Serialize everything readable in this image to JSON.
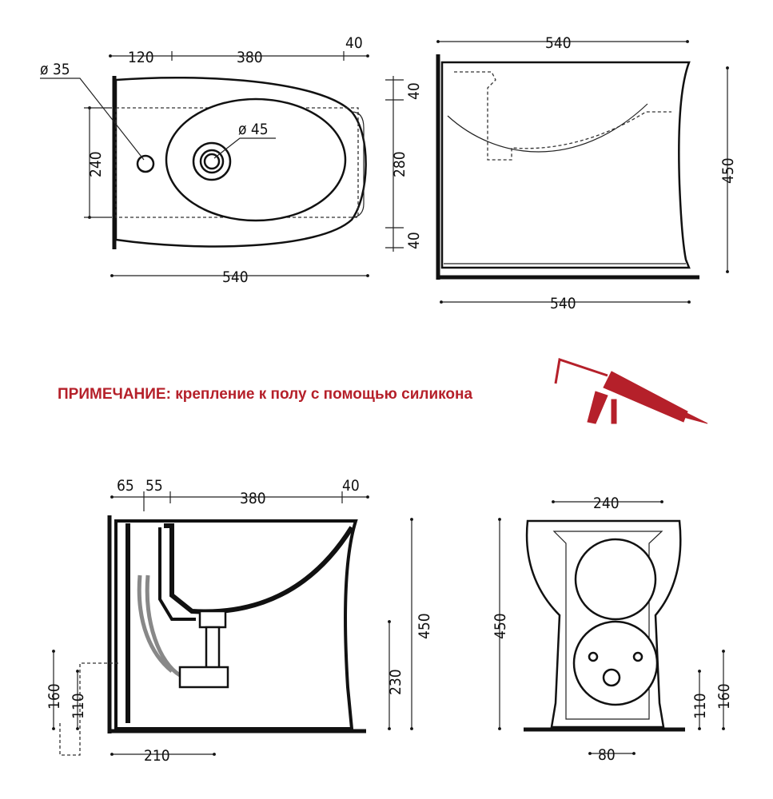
{
  "note": {
    "text": "ПРИМЕЧАНИЕ: крепление к полу с помощью силикона",
    "color": "#b5202a",
    "icon": "silicone-gun-icon"
  },
  "top_view": {
    "d_hole": "ø 35",
    "d_drain": "ø 45",
    "w120": "120",
    "w380": "380",
    "w40": "40",
    "h240": "240",
    "w540": "540"
  },
  "side_view": {
    "w540_top": "540",
    "w540_bottom": "540",
    "h40_top": "40",
    "h280": "280",
    "h40_bottom": "40",
    "h450": "450"
  },
  "section_view": {
    "w65": "65",
    "w55": "55",
    "w380": "380",
    "w40": "40",
    "h450": "450",
    "h230": "230",
    "h160": "160",
    "h110": "110",
    "w210": "210"
  },
  "rear_view": {
    "w240": "240",
    "h450": "450",
    "h110": "110",
    "h160": "160",
    "w80": "80"
  }
}
